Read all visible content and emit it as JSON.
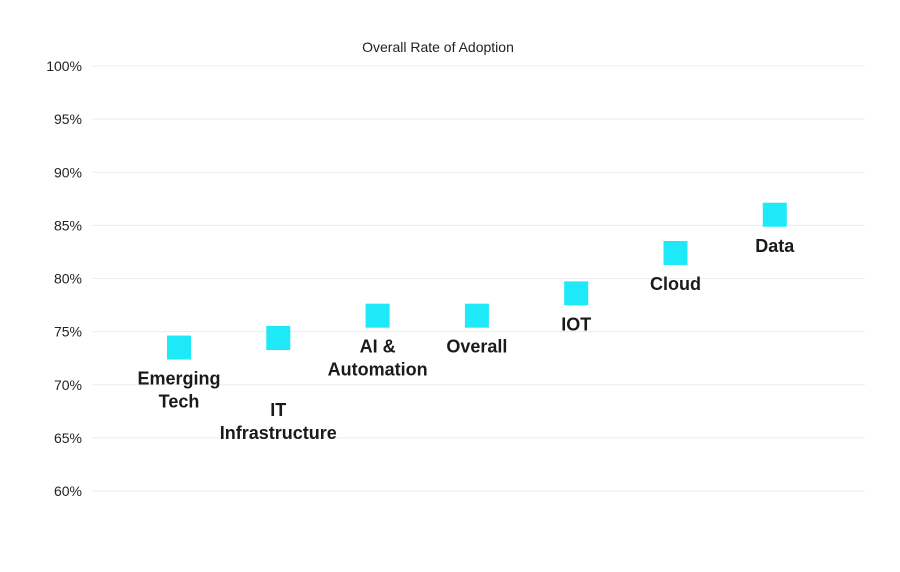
{
  "chart_data": {
    "type": "scatter",
    "title": "Overall Rate of Adoption",
    "xlabel": "",
    "ylabel": "",
    "ylim": [
      60,
      100
    ],
    "y_ticks": [
      "100%",
      "95%",
      "90%",
      "85%",
      "80%",
      "75%",
      "70%",
      "65%",
      "60%"
    ],
    "grid": true,
    "legend": "none",
    "marker_color": "#1de9f8",
    "marker_shape": "square",
    "points": [
      {
        "category": "Emerging Tech",
        "label_lines": [
          "Emerging",
          "Tech"
        ],
        "value": 73.5
      },
      {
        "category": "IT Infrastructure",
        "label_lines": [
          "IT",
          "Infrastructure"
        ],
        "value": 74.4
      },
      {
        "category": "AI & Automation",
        "label_lines": [
          "AI &",
          "Automation"
        ],
        "value": 76.5
      },
      {
        "category": "Overall",
        "label_lines": [
          "Overall"
        ],
        "value": 76.5
      },
      {
        "category": "IOT",
        "label_lines": [
          "IOT"
        ],
        "value": 78.6
      },
      {
        "category": "Cloud",
        "label_lines": [
          "Cloud"
        ],
        "value": 82.4
      },
      {
        "category": "Data",
        "label_lines": [
          "Data"
        ],
        "value": 86.0
      }
    ]
  }
}
